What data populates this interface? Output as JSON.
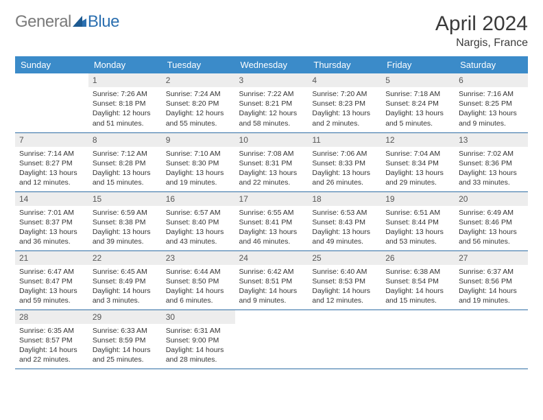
{
  "logo": {
    "part1": "General",
    "part2": "Blue"
  },
  "title": "April 2024",
  "location": "Nargis, France",
  "weekdays": [
    "Sunday",
    "Monday",
    "Tuesday",
    "Wednesday",
    "Thursday",
    "Friday",
    "Saturday"
  ],
  "colors": {
    "header_bg": "#3b8bc9",
    "header_text": "#ffffff",
    "daynum_bg": "#ededed",
    "border": "#2e6da4",
    "logo_gray": "#7a7a7a",
    "logo_blue": "#2b6fb0"
  },
  "cells": [
    {
      "n": "",
      "sr": "",
      "ss": "",
      "dl": ""
    },
    {
      "n": "1",
      "sr": "Sunrise: 7:26 AM",
      "ss": "Sunset: 8:18 PM",
      "dl": "Daylight: 12 hours and 51 minutes."
    },
    {
      "n": "2",
      "sr": "Sunrise: 7:24 AM",
      "ss": "Sunset: 8:20 PM",
      "dl": "Daylight: 12 hours and 55 minutes."
    },
    {
      "n": "3",
      "sr": "Sunrise: 7:22 AM",
      "ss": "Sunset: 8:21 PM",
      "dl": "Daylight: 12 hours and 58 minutes."
    },
    {
      "n": "4",
      "sr": "Sunrise: 7:20 AM",
      "ss": "Sunset: 8:23 PM",
      "dl": "Daylight: 13 hours and 2 minutes."
    },
    {
      "n": "5",
      "sr": "Sunrise: 7:18 AM",
      "ss": "Sunset: 8:24 PM",
      "dl": "Daylight: 13 hours and 5 minutes."
    },
    {
      "n": "6",
      "sr": "Sunrise: 7:16 AM",
      "ss": "Sunset: 8:25 PM",
      "dl": "Daylight: 13 hours and 9 minutes."
    },
    {
      "n": "7",
      "sr": "Sunrise: 7:14 AM",
      "ss": "Sunset: 8:27 PM",
      "dl": "Daylight: 13 hours and 12 minutes."
    },
    {
      "n": "8",
      "sr": "Sunrise: 7:12 AM",
      "ss": "Sunset: 8:28 PM",
      "dl": "Daylight: 13 hours and 15 minutes."
    },
    {
      "n": "9",
      "sr": "Sunrise: 7:10 AM",
      "ss": "Sunset: 8:30 PM",
      "dl": "Daylight: 13 hours and 19 minutes."
    },
    {
      "n": "10",
      "sr": "Sunrise: 7:08 AM",
      "ss": "Sunset: 8:31 PM",
      "dl": "Daylight: 13 hours and 22 minutes."
    },
    {
      "n": "11",
      "sr": "Sunrise: 7:06 AM",
      "ss": "Sunset: 8:33 PM",
      "dl": "Daylight: 13 hours and 26 minutes."
    },
    {
      "n": "12",
      "sr": "Sunrise: 7:04 AM",
      "ss": "Sunset: 8:34 PM",
      "dl": "Daylight: 13 hours and 29 minutes."
    },
    {
      "n": "13",
      "sr": "Sunrise: 7:02 AM",
      "ss": "Sunset: 8:36 PM",
      "dl": "Daylight: 13 hours and 33 minutes."
    },
    {
      "n": "14",
      "sr": "Sunrise: 7:01 AM",
      "ss": "Sunset: 8:37 PM",
      "dl": "Daylight: 13 hours and 36 minutes."
    },
    {
      "n": "15",
      "sr": "Sunrise: 6:59 AM",
      "ss": "Sunset: 8:38 PM",
      "dl": "Daylight: 13 hours and 39 minutes."
    },
    {
      "n": "16",
      "sr": "Sunrise: 6:57 AM",
      "ss": "Sunset: 8:40 PM",
      "dl": "Daylight: 13 hours and 43 minutes."
    },
    {
      "n": "17",
      "sr": "Sunrise: 6:55 AM",
      "ss": "Sunset: 8:41 PM",
      "dl": "Daylight: 13 hours and 46 minutes."
    },
    {
      "n": "18",
      "sr": "Sunrise: 6:53 AM",
      "ss": "Sunset: 8:43 PM",
      "dl": "Daylight: 13 hours and 49 minutes."
    },
    {
      "n": "19",
      "sr": "Sunrise: 6:51 AM",
      "ss": "Sunset: 8:44 PM",
      "dl": "Daylight: 13 hours and 53 minutes."
    },
    {
      "n": "20",
      "sr": "Sunrise: 6:49 AM",
      "ss": "Sunset: 8:46 PM",
      "dl": "Daylight: 13 hours and 56 minutes."
    },
    {
      "n": "21",
      "sr": "Sunrise: 6:47 AM",
      "ss": "Sunset: 8:47 PM",
      "dl": "Daylight: 13 hours and 59 minutes."
    },
    {
      "n": "22",
      "sr": "Sunrise: 6:45 AM",
      "ss": "Sunset: 8:49 PM",
      "dl": "Daylight: 14 hours and 3 minutes."
    },
    {
      "n": "23",
      "sr": "Sunrise: 6:44 AM",
      "ss": "Sunset: 8:50 PM",
      "dl": "Daylight: 14 hours and 6 minutes."
    },
    {
      "n": "24",
      "sr": "Sunrise: 6:42 AM",
      "ss": "Sunset: 8:51 PM",
      "dl": "Daylight: 14 hours and 9 minutes."
    },
    {
      "n": "25",
      "sr": "Sunrise: 6:40 AM",
      "ss": "Sunset: 8:53 PM",
      "dl": "Daylight: 14 hours and 12 minutes."
    },
    {
      "n": "26",
      "sr": "Sunrise: 6:38 AM",
      "ss": "Sunset: 8:54 PM",
      "dl": "Daylight: 14 hours and 15 minutes."
    },
    {
      "n": "27",
      "sr": "Sunrise: 6:37 AM",
      "ss": "Sunset: 8:56 PM",
      "dl": "Daylight: 14 hours and 19 minutes."
    },
    {
      "n": "28",
      "sr": "Sunrise: 6:35 AM",
      "ss": "Sunset: 8:57 PM",
      "dl": "Daylight: 14 hours and 22 minutes."
    },
    {
      "n": "29",
      "sr": "Sunrise: 6:33 AM",
      "ss": "Sunset: 8:59 PM",
      "dl": "Daylight: 14 hours and 25 minutes."
    },
    {
      "n": "30",
      "sr": "Sunrise: 6:31 AM",
      "ss": "Sunset: 9:00 PM",
      "dl": "Daylight: 14 hours and 28 minutes."
    },
    {
      "n": "",
      "sr": "",
      "ss": "",
      "dl": ""
    },
    {
      "n": "",
      "sr": "",
      "ss": "",
      "dl": ""
    },
    {
      "n": "",
      "sr": "",
      "ss": "",
      "dl": ""
    },
    {
      "n": "",
      "sr": "",
      "ss": "",
      "dl": ""
    }
  ]
}
